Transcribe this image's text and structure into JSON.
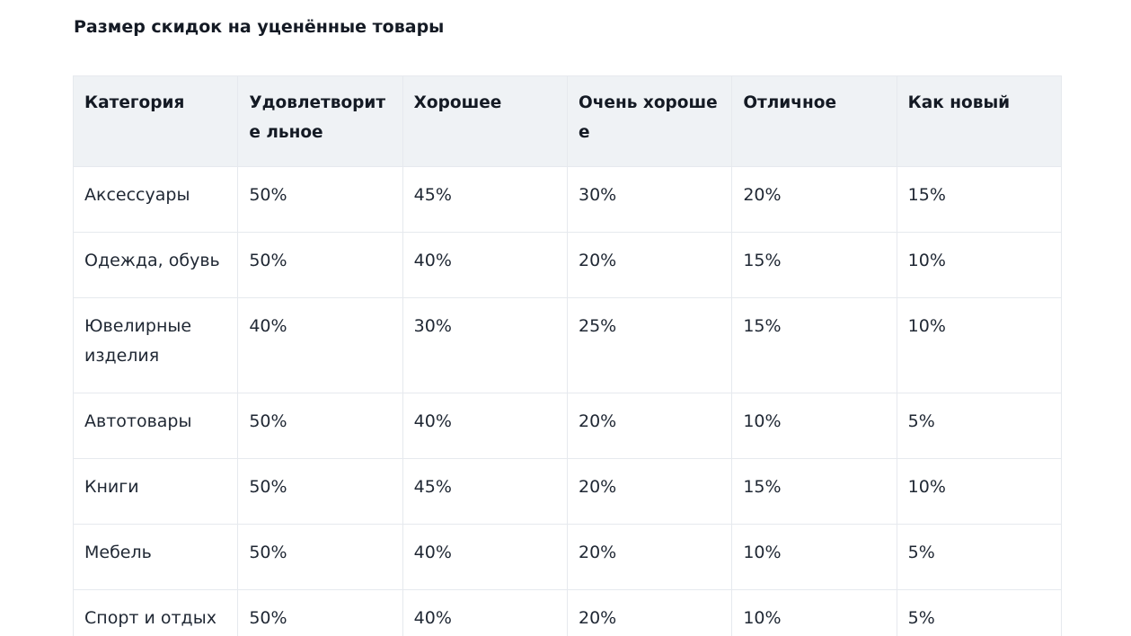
{
  "title": "Размер скидок на уценённые товары",
  "table": {
    "headers": [
      "Категория",
      "Удовлетворите льное",
      "Хорошее",
      "Очень хорошее",
      "Отличное",
      "Как новый"
    ],
    "rows": [
      [
        "Аксессуары",
        "50%",
        "45%",
        "30%",
        "20%",
        "15%"
      ],
      [
        "Одежда, обувь",
        "50%",
        "40%",
        "20%",
        "15%",
        "10%"
      ],
      [
        "Ювелирные изделия",
        "40%",
        "30%",
        "25%",
        "15%",
        "10%"
      ],
      [
        "Автотовары",
        "50%",
        "40%",
        "20%",
        "10%",
        "5%"
      ],
      [
        "Книги",
        "50%",
        "45%",
        "20%",
        "15%",
        "10%"
      ],
      [
        "Мебель",
        "50%",
        "40%",
        "20%",
        "10%",
        "5%"
      ],
      [
        "Спорт и отдых",
        "50%",
        "40%",
        "20%",
        "10%",
        "5%"
      ]
    ]
  }
}
